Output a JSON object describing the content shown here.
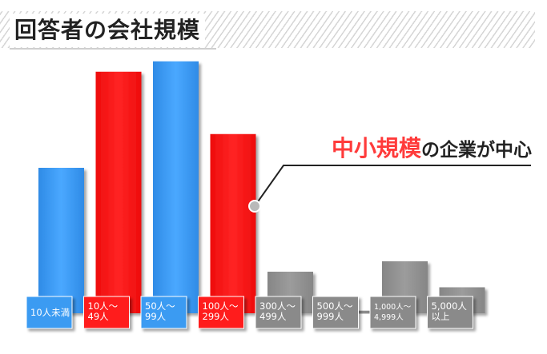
{
  "header": {
    "title": "回答者の会社規模"
  },
  "annotation": {
    "highlight": "中小規模",
    "rest": "の企業が中心",
    "highlight_color": "#ff3b3b",
    "text_color": "#222222"
  },
  "colors": {
    "blue": "#3a9bf2",
    "red": "#ff1a1a",
    "gray": "#8f8f8f"
  },
  "chart_data": {
    "type": "bar",
    "title": "回答者の会社規模",
    "xlabel": "",
    "ylabel": "",
    "grid": false,
    "legend": "none",
    "axis_values_shown": false,
    "ylim": [
      0,
      100
    ],
    "categories": [
      {
        "lines": [
          "10人未満"
        ],
        "color": "blue"
      },
      {
        "lines": [
          "10人〜",
          "49人"
        ],
        "color": "red"
      },
      {
        "lines": [
          "50人〜",
          "99人"
        ],
        "color": "blue"
      },
      {
        "lines": [
          "100人〜",
          "299人"
        ],
        "color": "red"
      },
      {
        "lines": [
          "300人〜",
          "499人"
        ],
        "color": "gray"
      },
      {
        "lines": [
          "500人〜",
          "999人"
        ],
        "color": "gray"
      },
      {
        "lines": [
          "1,000人〜",
          "4,999人"
        ],
        "color": "gray"
      },
      {
        "lines": [
          "5,000人",
          "以上"
        ],
        "color": "gray"
      }
    ],
    "values": [
      56,
      93,
      97,
      69,
      16,
      1,
      20,
      10
    ]
  }
}
